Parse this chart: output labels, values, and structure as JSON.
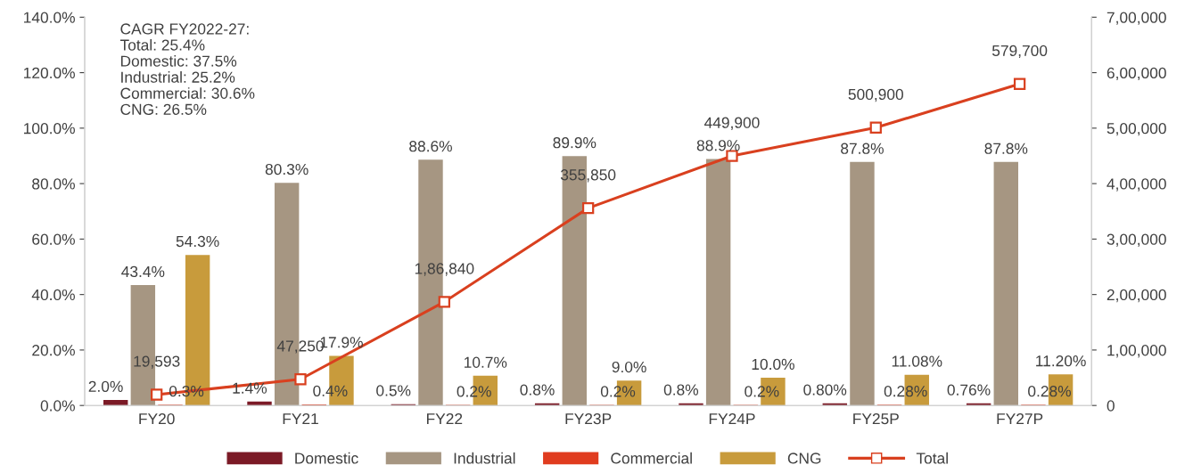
{
  "chart_data": {
    "type": "bar",
    "categories": [
      "FY20",
      "FY21",
      "FY22",
      "FY23P",
      "FY24P",
      "FY25P",
      "FY27P"
    ],
    "series": [
      {
        "name": "Domestic",
        "color": "#7b1a26",
        "values": [
          2.0,
          1.4,
          0.5,
          0.8,
          0.8,
          0.8,
          0.76
        ],
        "value_labels": [
          "2.0%",
          "1.4%",
          "0.5%",
          "0.8%",
          "0.8%",
          "0.80%",
          "0.76%"
        ]
      },
      {
        "name": "Industrial",
        "color": "#a69682",
        "values": [
          43.4,
          80.3,
          88.6,
          89.9,
          88.9,
          87.8,
          87.8
        ],
        "value_labels": [
          "43.4%",
          "80.3%",
          "88.6%",
          "89.9%",
          "88.9%",
          "87.8%",
          "87.8%"
        ]
      },
      {
        "name": "Commercial",
        "color": "#e03c1f",
        "values": [
          0.3,
          0.4,
          0.2,
          0.2,
          0.2,
          0.28,
          0.28
        ],
        "value_labels": [
          "0.3%",
          "0.4%",
          "0.2%",
          "0.2%",
          "0.2%",
          "0.28%",
          "0.28%"
        ]
      },
      {
        "name": "CNG",
        "color": "#c89b3c",
        "values": [
          54.3,
          17.9,
          10.7,
          9.0,
          10.0,
          11.08,
          11.2
        ],
        "value_labels": [
          "54.3%",
          "17.9%",
          "10.7%",
          "9.0%",
          "10.0%",
          "11.08%",
          "11.20%"
        ]
      },
      {
        "name": "Total",
        "type": "line",
        "axis": "y2",
        "color": "#d9401f",
        "marker": "square",
        "values": [
          19593,
          47250,
          186840,
          355850,
          449900,
          500900,
          579700
        ],
        "value_labels": [
          "19,593",
          "47,250",
          "1,86,840",
          "355,850",
          "449,900",
          "500,900",
          "579,700"
        ]
      }
    ],
    "ylim": [
      0,
      140
    ],
    "yticks": [
      {
        "value": 0,
        "label": "0.0%"
      },
      {
        "value": 20,
        "label": "20.0%"
      },
      {
        "value": 40,
        "label": "40.0%"
      },
      {
        "value": 60,
        "label": "60.0%"
      },
      {
        "value": 80,
        "label": "80.0%"
      },
      {
        "value": 100,
        "label": "100.0%"
      },
      {
        "value": 120,
        "label": "120.0%"
      },
      {
        "value": 140,
        "label": "140.0%"
      }
    ],
    "y2lim": [
      0,
      700000
    ],
    "y2ticks": [
      0,
      {
        "value": 100000,
        "label": "1,00,000"
      },
      {
        "value": 200000,
        "label": "2,00,000"
      },
      {
        "value": 300000,
        "label": "3,00,000"
      },
      {
        "value": 400000,
        "label": "4,00,000"
      },
      {
        "value": 500000,
        "label": "5,00,000"
      },
      {
        "value": 600000,
        "label": "6,00,000"
      },
      {
        "value": 700000,
        "label": "7,00,000"
      }
    ],
    "annotations": [
      "CAGR FY2022-27:\nTotal: 25.4%\nDomestic: 37.5%\nIndustrial: 25.2%\nCommercial: 30.6%\nCNG: 26.5%"
    ],
    "legend": "bottom",
    "grid": false
  }
}
